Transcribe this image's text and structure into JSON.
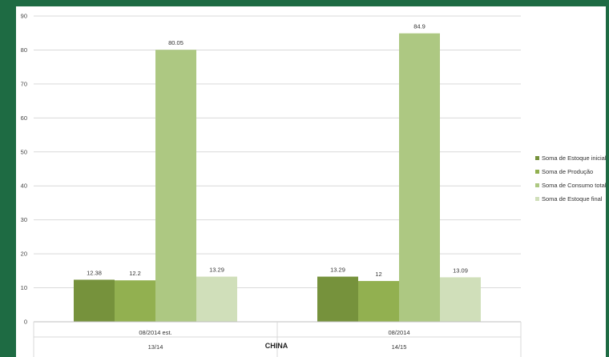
{
  "chart_data": {
    "type": "bar",
    "title": "",
    "xlabel": "CHINA",
    "ylabel": "",
    "ylim": [
      0,
      90
    ],
    "yticks": [
      0,
      10,
      20,
      30,
      40,
      50,
      60,
      70,
      80,
      90
    ],
    "grid": true,
    "legend_position": "right",
    "categories": [
      "08/2014 est.",
      "08/2014"
    ],
    "subcategories": [
      "13/14",
      "14/15"
    ],
    "series": [
      {
        "name": "Soma de Estoque inicial",
        "color": "#76923c",
        "values": [
          12.38,
          13.29
        ],
        "labels": [
          "12.38",
          "13.29"
        ]
      },
      {
        "name": "Soma de Produção",
        "color": "#92b050",
        "values": [
          12.2,
          12
        ],
        "labels": [
          "12.2",
          "12"
        ]
      },
      {
        "name": "Soma de Consumo total",
        "color": "#adc882",
        "values": [
          80.05,
          84.9
        ],
        "labels": [
          "80.05",
          "84.9"
        ]
      },
      {
        "name": "Soma de Estoque final",
        "color": "#d0dfba",
        "values": [
          13.29,
          13.09
        ],
        "labels": [
          "13.29",
          "13.09"
        ]
      }
    ]
  }
}
